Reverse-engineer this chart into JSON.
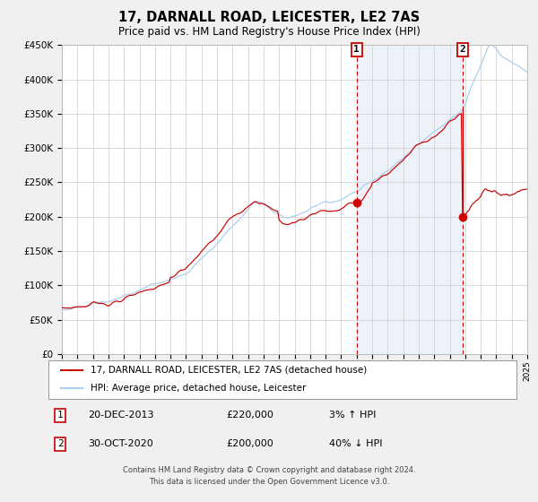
{
  "title": "17, DARNALL ROAD, LEICESTER, LE2 7AS",
  "subtitle": "Price paid vs. HM Land Registry's House Price Index (HPI)",
  "ylim": [
    0,
    450000
  ],
  "yticks": [
    0,
    50000,
    100000,
    150000,
    200000,
    250000,
    300000,
    350000,
    400000,
    450000
  ],
  "hpi_color": "#aaccee",
  "price_color": "#cc0000",
  "shade_color": "#ddeeff",
  "title_fontsize": 11,
  "subtitle_fontsize": 9,
  "legend_label_price": "17, DARNALL ROAD, LEICESTER, LE2 7AS (detached house)",
  "legend_label_hpi": "HPI: Average price, detached house, Leicester",
  "annotation1_date": "20-DEC-2013",
  "annotation1_price": "£220,000",
  "annotation1_hpi": "3% ↑ HPI",
  "annotation1_year": 2013.97,
  "annotation1_value": 220000,
  "annotation2_date": "30-OCT-2020",
  "annotation2_price": "£200,000",
  "annotation2_hpi": "40% ↓ HPI",
  "annotation2_year": 2020.83,
  "annotation2_value": 200000,
  "footer_line1": "Contains HM Land Registry data © Crown copyright and database right 2024.",
  "footer_line2": "This data is licensed under the Open Government Licence v3.0.",
  "background_color": "#f0f0f0",
  "plot_background": "#ffffff",
  "grid_color": "#cccccc"
}
